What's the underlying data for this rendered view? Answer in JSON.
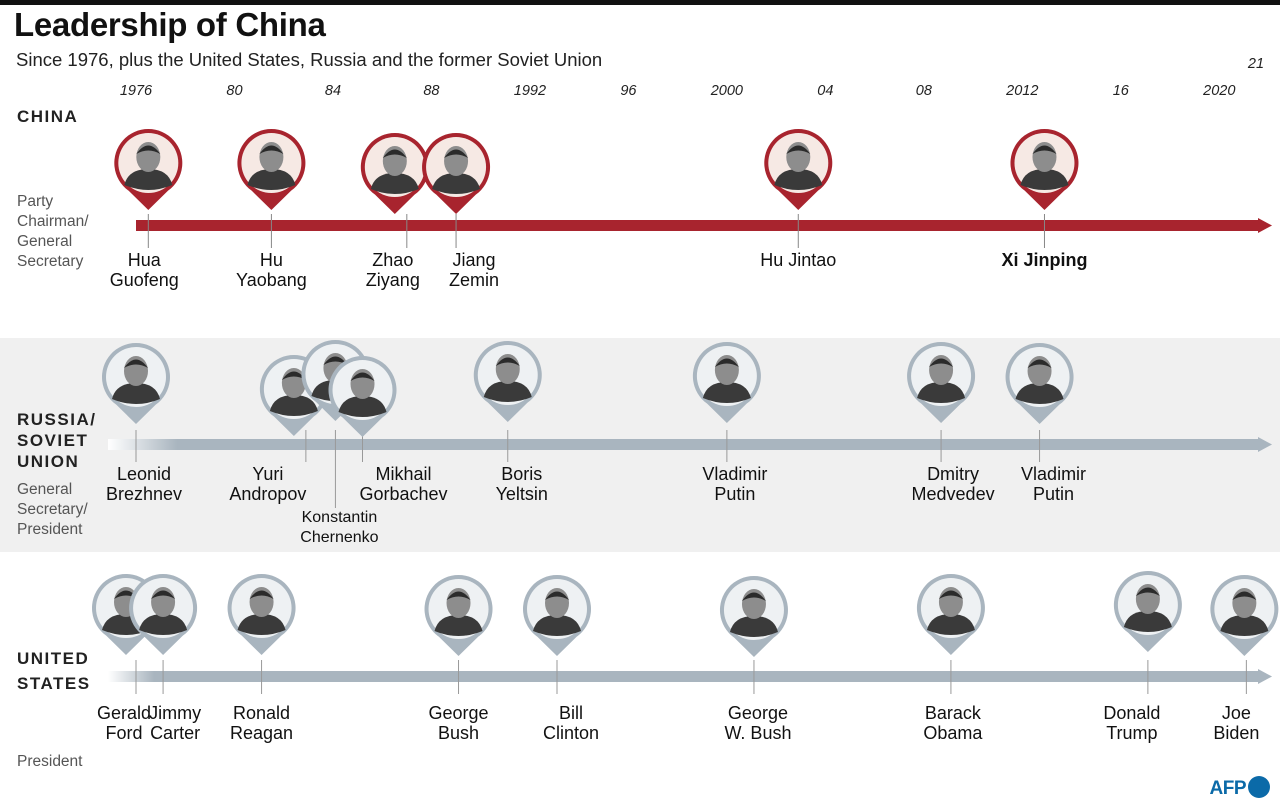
{
  "title": "Leadership of China",
  "subtitle": "Since 1976, plus the United States, Russia and the former Soviet Union",
  "axis": {
    "start_year": 1976,
    "end_year": 2021,
    "ticks": [
      {
        "year": 1976,
        "label": "1976"
      },
      {
        "year": 1980,
        "label": "80"
      },
      {
        "year": 1984,
        "label": "84"
      },
      {
        "year": 1988,
        "label": "88"
      },
      {
        "year": 1992,
        "label": "1992"
      },
      {
        "year": 1996,
        "label": "96"
      },
      {
        "year": 2000,
        "label": "2000"
      },
      {
        "year": 2004,
        "label": "04"
      },
      {
        "year": 2008,
        "label": "08"
      },
      {
        "year": 2012,
        "label": "2012"
      },
      {
        "year": 2016,
        "label": "16"
      },
      {
        "year": 2020,
        "label": "2020"
      }
    ],
    "end_label": "21"
  },
  "colors": {
    "china": "#a8242e",
    "russia": "#a9b5bf",
    "us": "#a9b5bf"
  },
  "china": {
    "heading": "CHINA",
    "role_lines": [
      "Party",
      "Chairman/",
      "General",
      "Secretary"
    ],
    "leaders": [
      {
        "year": 1976.5,
        "first": "Hua",
        "last": "Guofeng"
      },
      {
        "year": 1981.5,
        "first": "Hu",
        "last": "Yaobang"
      },
      {
        "year": 1987,
        "first": "Zhao",
        "last": "Ziyang"
      },
      {
        "year": 1989,
        "first": "Jiang",
        "last": "Zemin"
      },
      {
        "year": 2002.9,
        "first": "Hu Jintao",
        "last": ""
      },
      {
        "year": 2012.9,
        "first": "Xi Jinping",
        "last": ""
      }
    ]
  },
  "russia": {
    "heading_lines": [
      "RUSSIA/",
      "SOVIET",
      "UNION"
    ],
    "role_lines": [
      "General",
      "Secretary/",
      "President"
    ],
    "leaders": [
      {
        "year": 1976,
        "first": "Leonid",
        "last": "Brezhnev"
      },
      {
        "year": 1982.9,
        "first": "Yuri",
        "last": "Andropov"
      },
      {
        "year": 1984.1,
        "first": "Konstantin",
        "last": "Chernenko"
      },
      {
        "year": 1985.2,
        "first": "Mikhail",
        "last": "Gorbachev"
      },
      {
        "year": 1991.1,
        "first": "Boris",
        "last": "Yeltsin"
      },
      {
        "year": 2000,
        "first": "Vladimir",
        "last": "Putin"
      },
      {
        "year": 2008.7,
        "first": "Dmitry",
        "last": "Medvedev"
      },
      {
        "year": 2012.7,
        "first": "Vladimir",
        "last": "Putin"
      }
    ]
  },
  "us": {
    "heading_lines": [
      "UNITED",
      "STATES"
    ],
    "role_lines": [
      "President"
    ],
    "leaders": [
      {
        "year": 1976,
        "first": "Gerald",
        "last": "Ford"
      },
      {
        "year": 1977.1,
        "first": "Jimmy",
        "last": "Carter"
      },
      {
        "year": 1981.1,
        "first": "Ronald",
        "last": "Reagan"
      },
      {
        "year": 1989.1,
        "first": "George",
        "last": "Bush"
      },
      {
        "year": 1993.1,
        "first": "Bill",
        "last": "Clinton"
      },
      {
        "year": 2001.1,
        "first": "George",
        "last": "W. Bush"
      },
      {
        "year": 2009.1,
        "first": "Barack",
        "last": "Obama"
      },
      {
        "year": 2017.1,
        "first": "Donald",
        "last": "Trump"
      },
      {
        "year": 2021.1,
        "first": "Joe",
        "last": "Biden"
      }
    ]
  },
  "logo": "AFP"
}
